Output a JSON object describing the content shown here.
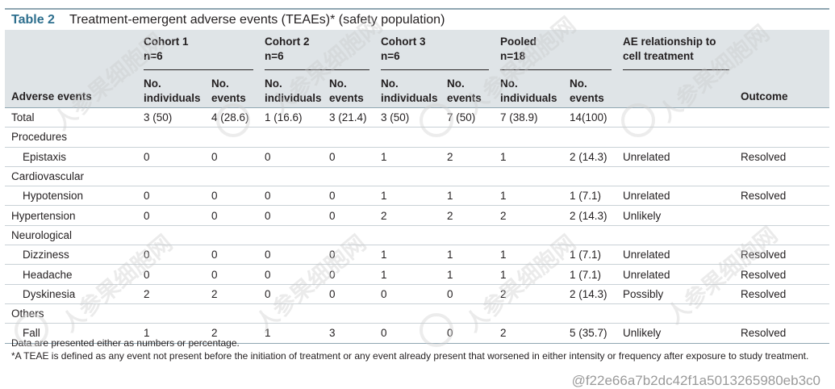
{
  "title": {
    "label": "Table 2",
    "text": "Treatment-emergent adverse events (TEAEs)* (safety population)"
  },
  "header": {
    "row_label": "Adverse events",
    "cohorts": [
      {
        "name": "Cohort 1",
        "n": "n=6"
      },
      {
        "name": "Cohort 2",
        "n": "n=6"
      },
      {
        "name": "Cohort 3",
        "n": "n=6"
      },
      {
        "name": "Pooled",
        "n": "n=18"
      }
    ],
    "relationship": "AE relationship to cell treatment",
    "outcome": "Outcome",
    "sub_individuals": "No. individuals",
    "sub_events": "No. events"
  },
  "rows": [
    {
      "label": "Total",
      "sub": false,
      "vals": [
        "3 (50)",
        "4 (28.6)",
        "1 (16.6)",
        "3 (21.4)",
        "3 (50)",
        "7 (50)",
        "7 (38.9)",
        "14(100)"
      ],
      "rel": "",
      "out": ""
    },
    {
      "label": "Procedures",
      "section": true
    },
    {
      "label": "Epistaxis",
      "sub": true,
      "vals": [
        "0",
        "0",
        "0",
        "0",
        "1",
        "2",
        "1",
        "2 (14.3)"
      ],
      "rel": "Unrelated",
      "out": "Resolved"
    },
    {
      "label": "Cardiovascular",
      "section": true
    },
    {
      "label": "Hypotension",
      "sub": true,
      "vals": [
        "0",
        "0",
        "0",
        "0",
        "1",
        "1",
        "1",
        "1 (7.1)"
      ],
      "rel": "Unrelated",
      "out": "Resolved"
    },
    {
      "label": "Hypertension",
      "sub": false,
      "vals": [
        "0",
        "0",
        "0",
        "0",
        "2",
        "2",
        "2",
        "2 (14.3)"
      ],
      "rel": "Unlikely",
      "out": ""
    },
    {
      "label": "Neurological",
      "section": true
    },
    {
      "label": "Dizziness",
      "sub": true,
      "vals": [
        "0",
        "0",
        "0",
        "0",
        "1",
        "1",
        "1",
        "1 (7.1)"
      ],
      "rel": "Unrelated",
      "out": "Resolved"
    },
    {
      "label": "Headache",
      "sub": true,
      "vals": [
        "0",
        "0",
        "0",
        "0",
        "1",
        "1",
        "1",
        "1 (7.1)"
      ],
      "rel": "Unrelated",
      "out": "Resolved"
    },
    {
      "label": "Dyskinesia",
      "sub": true,
      "vals": [
        "2",
        "2",
        "0",
        "0",
        "0",
        "0",
        "2",
        "2 (14.3)"
      ],
      "rel": "Possibly",
      "out": "Resolved"
    },
    {
      "label": "Others",
      "section": true
    },
    {
      "label": "Fall",
      "sub": true,
      "vals": [
        "1",
        "2",
        "1",
        "3",
        "0",
        "0",
        "2",
        "5 (35.7)"
      ],
      "rel": "Unlikely",
      "out": "Resolved"
    }
  ],
  "footnotes": [
    "Data are presented either as numbers or percentage.",
    "*A TEAE is defined as any event not present before the initiation of treatment or any event already present that worsened in either intensity or frequency after exposure to study treatment."
  ],
  "watermark": {
    "text": "人参果细胞网",
    "id": "@f22e66a7b2dc42f1a5013265980eb3c0"
  },
  "colors": {
    "title_accent": "#2e6f8e",
    "header_bg": "#dfe4e7",
    "rule": "#8fa6b2"
  }
}
